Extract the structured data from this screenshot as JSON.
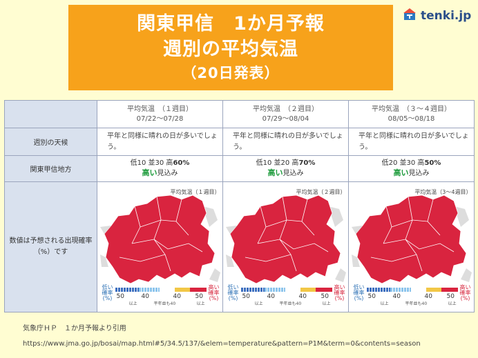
{
  "title": {
    "line1": "関東甲信　1か月予報",
    "line2": "週別の平均気温",
    "line3": "（20日発表）"
  },
  "brand": {
    "name": "tenki.jp",
    "icon": "tenki-umbrella-icon",
    "color": "#2b4f8a"
  },
  "table": {
    "periods": [
      {
        "label": "平均気温　（１週目）",
        "dates": "07/22〜07/28",
        "weather": "平年と同様に晴れの日が多いでしょう。",
        "prob_text": "低10 並30 高",
        "prob_high": "60%",
        "strong": "高い",
        "strong_tail": "見込み",
        "map_caption": "平均気温（１週目）"
      },
      {
        "label": "平均気温　（２週目）",
        "dates": "07/29〜08/04",
        "weather": "平年と同様に晴れの日が多いでしょう。",
        "prob_text": "低10 並20 高",
        "prob_high": "70%",
        "strong": "高い",
        "strong_tail": "見込み",
        "map_caption": "平均気温（２週目）"
      },
      {
        "label": "平均気温　（３〜４週目）",
        "dates": "08/05〜08/18",
        "weather": "平年と同様に晴れの日が多いでしょう。",
        "prob_text": "低20 並30 高",
        "prob_high": "50%",
        "strong": "高い",
        "strong_tail": "見込み",
        "map_caption": "平均気温（3〜4週目）"
      }
    ],
    "row_weather": "週別の天候",
    "row_region": "関東甲信地方",
    "row_map": "数値は予想される出現確率（%）です"
  },
  "legend": {
    "low_label": "低い\n確率\n(%)",
    "high_label": "高い\n確率\n(%)",
    "ticks": [
      "50",
      "40",
      "40",
      "50"
    ],
    "sub_left": "以上",
    "sub_mid": "平年並も40",
    "sub_right": "以上"
  },
  "colors": {
    "map_fill": "#d9243f",
    "sea": "#ffffff",
    "legend_blue": "#3d6fbf",
    "legend_lightblue": "#8bc4ec",
    "legend_yellow": "#f2c746",
    "legend_red": "#d9243f"
  },
  "source": "気象庁ＨＰ　１か月予報より引用",
  "url": "https://www.jma.go.jp/bosai/map.html#5/34.5/137/&elem=temperature&pattern=P1M&term=0&contents=season"
}
